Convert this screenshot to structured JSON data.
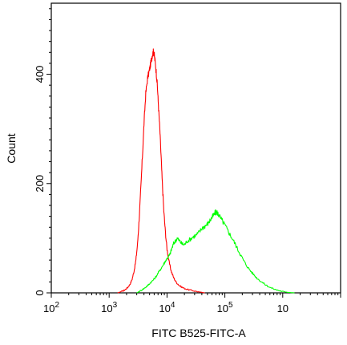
{
  "chart_data": {
    "type": "line",
    "title": "",
    "xlabel": "FITC B525-FITC-A",
    "ylabel": "Count",
    "x_scale": "log",
    "xlim": [
      100,
      10000000
    ],
    "ylim": [
      0,
      530
    ],
    "x_ticks": [
      {
        "value": 100,
        "base": "10",
        "exp": "2"
      },
      {
        "value": 1000,
        "base": "10",
        "exp": "3"
      },
      {
        "value": 10000,
        "base": "10",
        "exp": "4"
      },
      {
        "value": 100000,
        "base": "10",
        "exp": "5"
      },
      {
        "value": 1000000,
        "base": "10",
        "exp": ""
      }
    ],
    "y_ticks": [
      {
        "value": 0,
        "label": "0"
      },
      {
        "value": 200,
        "label": "200"
      },
      {
        "value": 400,
        "label": "400"
      }
    ],
    "grid": false,
    "legend": "none",
    "series": [
      {
        "color": "#ff0000",
        "points": [
          [
            1400,
            0
          ],
          [
            1700,
            3
          ],
          [
            1900,
            6
          ],
          [
            2100,
            10
          ],
          [
            2300,
            16
          ],
          [
            2500,
            25
          ],
          [
            2700,
            40
          ],
          [
            2900,
            60
          ],
          [
            3100,
            90
          ],
          [
            3300,
            135
          ],
          [
            3550,
            195
          ],
          [
            3800,
            260
          ],
          [
            4050,
            320
          ],
          [
            4300,
            365
          ],
          [
            4600,
            392
          ],
          [
            4900,
            405
          ],
          [
            5150,
            416
          ],
          [
            5400,
            428
          ],
          [
            5600,
            436
          ],
          [
            5800,
            441
          ],
          [
            6000,
            437
          ],
          [
            6200,
            425
          ],
          [
            6500,
            405
          ],
          [
            6800,
            380
          ],
          [
            7100,
            345
          ],
          [
            7500,
            300
          ],
          [
            7900,
            250
          ],
          [
            8300,
            200
          ],
          [
            8800,
            150
          ],
          [
            9400,
            110
          ],
          [
            10000,
            80
          ],
          [
            10800,
            58
          ],
          [
            11800,
            40
          ],
          [
            13000,
            28
          ],
          [
            14500,
            19
          ],
          [
            16500,
            13
          ],
          [
            19000,
            9
          ],
          [
            23000,
            6
          ],
          [
            28000,
            4
          ],
          [
            35000,
            2
          ],
          [
            45000,
            0
          ]
        ]
      },
      {
        "color": "#00ff00",
        "points": [
          [
            3000,
            0
          ],
          [
            3500,
            4
          ],
          [
            4000,
            8
          ],
          [
            4500,
            12
          ],
          [
            5000,
            17
          ],
          [
            5600,
            22
          ],
          [
            6300,
            28
          ],
          [
            7000,
            36
          ],
          [
            7800,
            44
          ],
          [
            8700,
            52
          ],
          [
            9600,
            60
          ],
          [
            10500,
            66
          ],
          [
            11200,
            70
          ],
          [
            12000,
            80
          ],
          [
            13000,
            90
          ],
          [
            14000,
            95
          ],
          [
            15000,
            100
          ],
          [
            16500,
            95
          ],
          [
            18000,
            90
          ],
          [
            20000,
            88
          ],
          [
            22000,
            94
          ],
          [
            25000,
            98
          ],
          [
            28000,
            102
          ],
          [
            32000,
            106
          ],
          [
            36000,
            111
          ],
          [
            40000,
            118
          ],
          [
            45000,
            122
          ],
          [
            50000,
            126
          ],
          [
            55000,
            132
          ],
          [
            60000,
            138
          ],
          [
            65000,
            143
          ],
          [
            70000,
            148
          ],
          [
            75000,
            146
          ],
          [
            80000,
            141
          ],
          [
            90000,
            132
          ],
          [
            100000,
            124
          ],
          [
            115000,
            112
          ],
          [
            130000,
            102
          ],
          [
            150000,
            90
          ],
          [
            170000,
            78
          ],
          [
            195000,
            66
          ],
          [
            225000,
            54
          ],
          [
            260000,
            44
          ],
          [
            300000,
            36
          ],
          [
            350000,
            28
          ],
          [
            420000,
            21
          ],
          [
            500000,
            15
          ],
          [
            600000,
            10
          ],
          [
            750000,
            6
          ],
          [
            950000,
            3
          ],
          [
            1200000,
            1
          ],
          [
            1600000,
            0
          ]
        ]
      }
    ]
  }
}
